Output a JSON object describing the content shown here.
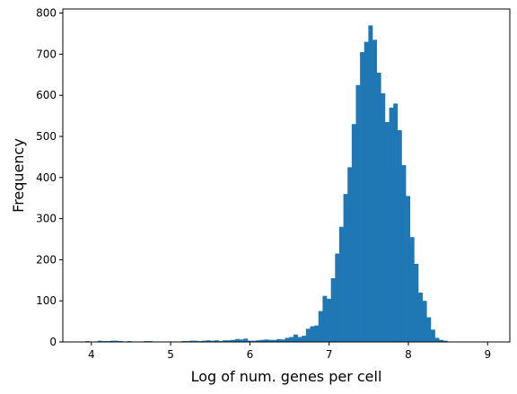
{
  "chart_data": {
    "type": "bar",
    "xlabel": "Log of num. genes per cell",
    "ylabel": "Frequency",
    "xlim": [
      3.64,
      9.28
    ],
    "ylim": [
      0,
      810
    ],
    "xticks": [
      4,
      5,
      6,
      7,
      8,
      9
    ],
    "yticks": [
      0,
      100,
      200,
      300,
      400,
      500,
      600,
      700,
      800
    ],
    "bar_color": "#1f77b4",
    "bin_start": 3.82,
    "bin_width": 0.0525,
    "values": [
      1,
      0,
      2,
      1,
      1,
      3,
      2,
      2,
      3,
      3,
      2,
      0,
      2,
      1,
      0,
      1,
      2,
      2,
      1,
      1,
      0,
      1,
      0,
      1,
      1,
      2,
      2,
      3,
      3,
      2,
      3,
      4,
      3,
      4,
      2,
      4,
      4,
      5,
      7,
      6,
      8,
      3,
      3,
      4,
      5,
      6,
      5,
      5,
      7,
      6,
      10,
      12,
      18,
      12,
      15,
      32,
      38,
      40,
      75,
      112,
      105,
      155,
      215,
      280,
      360,
      425,
      530,
      625,
      705,
      730,
      770,
      735,
      655,
      605,
      535,
      570,
      580,
      515,
      430,
      355,
      255,
      190,
      120,
      100,
      60,
      30,
      10,
      5,
      3
    ]
  }
}
